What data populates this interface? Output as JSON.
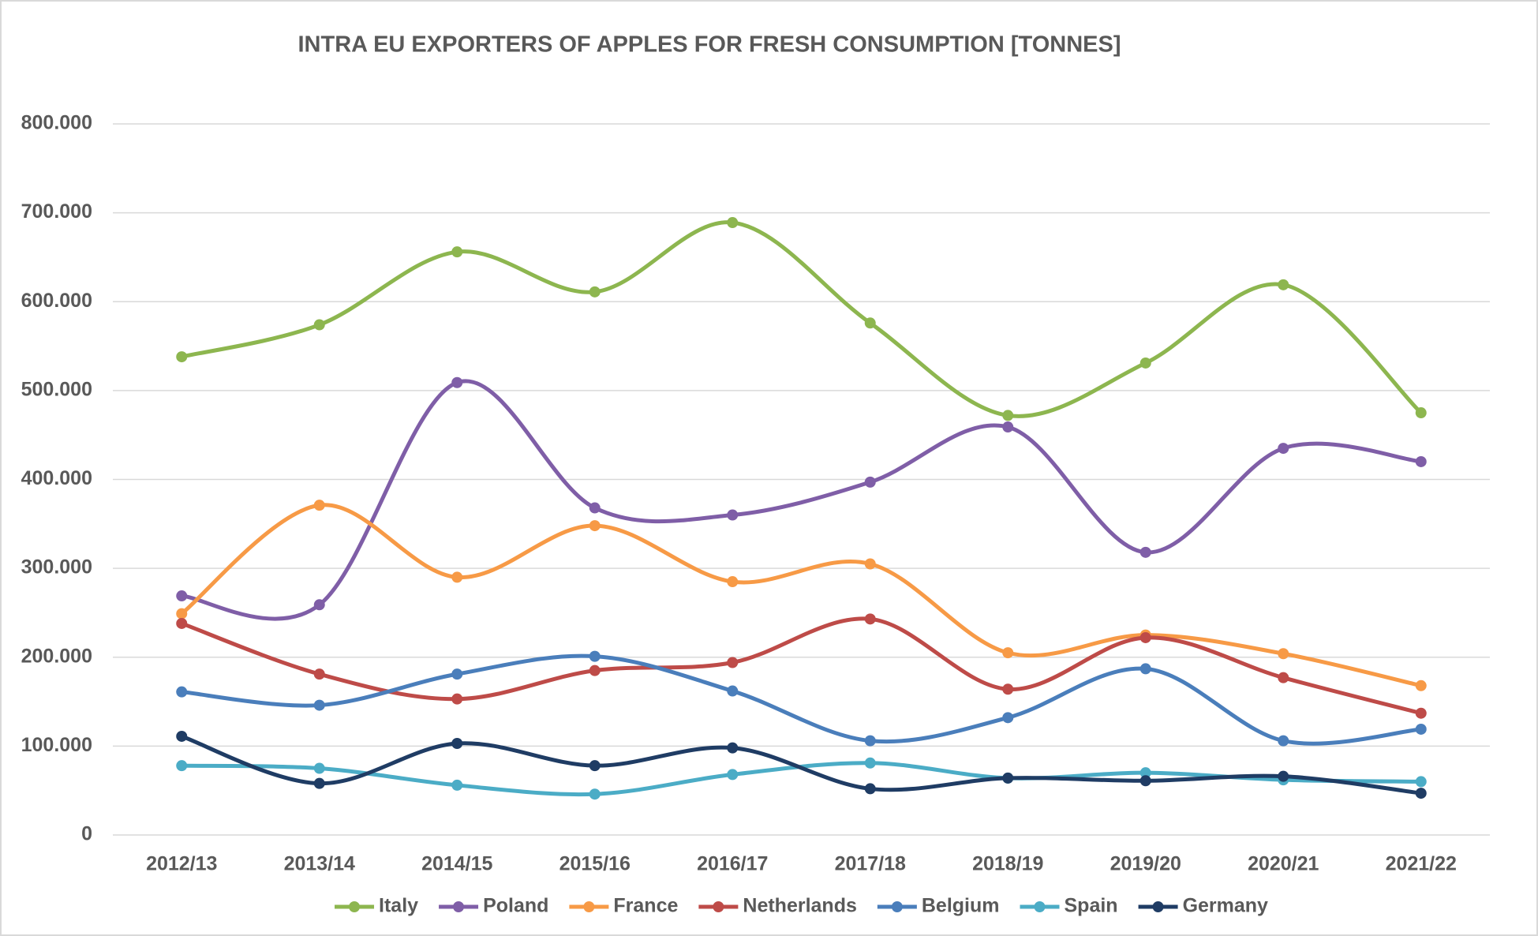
{
  "chart_data": {
    "type": "line",
    "smooth": true,
    "title": "INTRA EU EXPORTERS OF APPLES FOR FRESH CONSUMPTION [TONNES]",
    "categories": [
      "2012/13",
      "2013/14",
      "2014/15",
      "2015/16",
      "2016/17",
      "2017/18",
      "2018/19",
      "2019/20",
      "2020/21",
      "2021/22"
    ],
    "series": [
      {
        "name": "Italy",
        "color": "#8db64f",
        "values": [
          538000,
          574000,
          656000,
          611000,
          689000,
          576000,
          472000,
          531000,
          619000,
          475000
        ]
      },
      {
        "name": "Poland",
        "color": "#7f5ea7",
        "values": [
          269000,
          259000,
          509000,
          368000,
          360000,
          397000,
          459000,
          318000,
          435000,
          420000
        ]
      },
      {
        "name": "France",
        "color": "#f79a46",
        "values": [
          249000,
          371000,
          290000,
          348000,
          285000,
          305000,
          205000,
          225000,
          204000,
          168000
        ]
      },
      {
        "name": "Netherlands",
        "color": "#be4b48",
        "values": [
          238000,
          181000,
          153000,
          185000,
          194000,
          243000,
          164000,
          222000,
          177000,
          137000
        ]
      },
      {
        "name": "Belgium",
        "color": "#4a7ebb",
        "values": [
          161000,
          146000,
          181000,
          201000,
          162000,
          106000,
          132000,
          187000,
          106000,
          119000
        ]
      },
      {
        "name": "Spain",
        "color": "#4bacc6",
        "values": [
          78000,
          75000,
          56000,
          46000,
          68000,
          81000,
          64000,
          70000,
          62000,
          60000
        ]
      },
      {
        "name": "Germany",
        "color": "#1f3c64",
        "values": [
          111000,
          58000,
          103000,
          78000,
          98000,
          52000,
          64000,
          61000,
          66000,
          47000
        ]
      }
    ],
    "ylim": [
      0,
      800000
    ],
    "yticks": [
      0,
      {
        "value": 100000,
        "label": "100.000"
      },
      {
        "value": 200000,
        "label": "200.000"
      },
      {
        "value": 300000,
        "label": "300.000"
      },
      {
        "value": 400000,
        "label": "400.000"
      },
      {
        "value": 500000,
        "label": "500.000"
      },
      {
        "value": 600000,
        "label": "600.000"
      },
      {
        "value": 700000,
        "label": "700.000"
      },
      {
        "value": 800000,
        "label": "800.000"
      }
    ],
    "grid": true,
    "legend": "bottom"
  }
}
